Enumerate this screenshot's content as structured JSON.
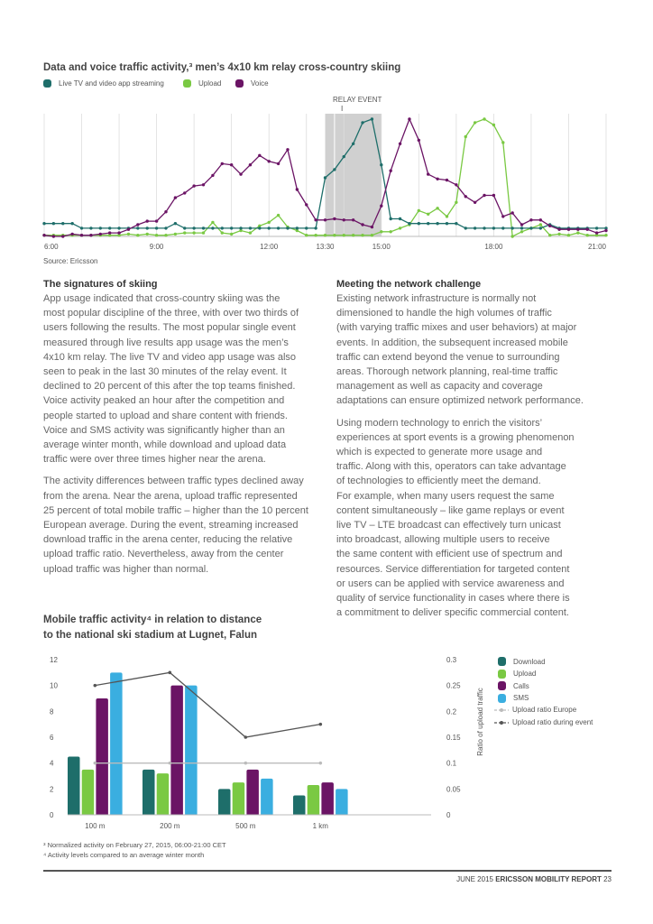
{
  "top_chart": {
    "title": "Data and voice traffic activity,³ men’s 4x10 km relay cross-country skiing",
    "legend": [
      {
        "label": "Live TV and video app streaming",
        "color": "#1e6e6a"
      },
      {
        "label": "Upload",
        "color": "#7ac943"
      },
      {
        "label": "Voice",
        "color": "#6b1465"
      }
    ],
    "annotation": "RELAY EVENT",
    "source": "Source: Ericsson",
    "chart_data": {
      "type": "line",
      "x_start": "6:00",
      "x_end": "21:00",
      "x_step_minutes": 15,
      "x_range_hours": [
        6,
        21
      ],
      "x_tick_labels": [
        {
          "h": 6,
          "label": "6:00"
        },
        {
          "h": 9,
          "label": "9:00"
        },
        {
          "h": 12,
          "label": "12:00"
        },
        {
          "h": 13.5,
          "label": "13:30"
        },
        {
          "h": 15,
          "label": "15:00"
        },
        {
          "h": 18,
          "label": "18:00"
        },
        {
          "h": 21,
          "label": "21:00"
        }
      ],
      "highlight_range_hours": [
        13.5,
        15
      ],
      "ylim": [
        0,
        100
      ],
      "series": [
        {
          "name": "Live TV and video app streaming",
          "color": "#1e6e6a",
          "values": [
            11,
            11,
            11,
            11,
            7,
            7,
            7,
            7,
            7,
            7,
            7,
            7,
            7,
            7,
            7,
            7,
            7,
            7,
            11,
            7,
            7,
            7,
            7,
            7,
            7,
            7,
            7,
            7,
            7,
            7,
            7,
            7,
            7,
            7,
            7,
            7,
            7,
            7,
            7,
            7,
            7,
            7,
            7,
            7,
            7,
            7,
            7,
            7,
            7,
            7,
            50,
            57,
            68,
            79,
            97,
            100,
            61,
            15,
            15,
            11,
            11,
            11,
            11,
            11,
            11,
            11,
            11,
            7,
            7,
            7,
            7,
            7,
            7,
            7,
            7,
            7,
            7,
            7,
            7,
            7,
            7,
            10,
            7,
            7,
            7,
            7,
            7,
            7,
            7,
            7,
            7,
            7,
            7,
            7,
            7,
            7,
            7,
            7,
            7,
            7,
            7,
            7,
            7,
            7,
            7,
            7,
            7,
            7,
            7,
            7,
            7,
            7,
            7,
            7,
            7,
            7
          ]
        },
        {
          "name": "Upload",
          "color": "#7ac943",
          "values": []
        },
        {
          "name": "Voice",
          "color": "#6b1465",
          "values": []
        }
      ]
    }
  },
  "left_column": {
    "heading": "The signatures of skiing",
    "paragraphs": [
      [
        "App usage indicated that cross-country skiing was the",
        "most popular discipline of the three, with over two thirds of",
        "users following the results. The most popular single event",
        "measured through live results app usage was the men’s",
        "4x10 km relay. The live TV and video app usage was also",
        "seen to peak in the last 30 minutes of the relay event. It",
        "declined to 20 percent of this after the top teams finished.",
        "Voice activity peaked an hour after the competition and",
        "people started to upload and share content with friends.",
        "Voice and SMS activity was significantly higher than an",
        "average winter month, while download and upload data",
        "traffic were over three times higher near the arena."
      ],
      [
        "The activity differences between traffic types declined away",
        "from the arena. Near the arena, upload traffic represented",
        "25 percent of total mobile traffic – higher than the 10 percent",
        "European average. During the event, streaming increased",
        "download traffic in the arena center, reducing the relative",
        "upload traffic ratio. Nevertheless, away from the center",
        "upload traffic was higher than normal."
      ]
    ]
  },
  "right_column": {
    "heading": "Meeting the network challenge",
    "paragraphs": [
      [
        "Existing network infrastructure is normally not",
        "dimensioned to handle the high volumes of traffic",
        "(with varying traffic mixes and user behaviors) at major",
        "events. In addition, the subsequent increased mobile",
        "traffic can extend beyond the venue to surrounding",
        "areas. Thorough network planning, real-time traffic",
        "management as well as capacity and coverage",
        "adaptations can ensure optimized network performance."
      ],
      [
        "Using modern technology to enrich the visitors’",
        "experiences at sport events is a growing phenomenon",
        "which is expected to generate more usage and",
        "traffic. Along with this, operators can take advantage",
        "of technologies to efficiently meet the demand.",
        "For example, when many users request the same",
        "content simultaneously – like game replays or event",
        "live TV – LTE broadcast can effectively turn unicast",
        "into broadcast, allowing multiple users to receive",
        "the same content with efficient use of spectrum and",
        "resources. Service differentiation for targeted content",
        "or users can be applied with service awareness and",
        "quality of service functionality in cases where there is",
        "a commitment to deliver specific commercial content."
      ]
    ]
  },
  "bottom_chart": {
    "title_lines": [
      "Mobile traffic activity⁴ in relation to distance",
      "to the national ski stadium at Lugnet, Falun"
    ],
    "chart_data": {
      "type": "bar",
      "categories": [
        "100 m",
        "200 m",
        "500 m",
        "1 km"
      ],
      "series": [
        {
          "name": "Download",
          "color": "#1e6e6a",
          "values": [
            4.5,
            3.5,
            2.0,
            1.5
          ]
        },
        {
          "name": "Upload",
          "color": "#7ac943",
          "values": [
            3.5,
            3.2,
            2.5,
            2.3
          ]
        },
        {
          "name": "Calls",
          "color": "#6b1465",
          "values": [
            9,
            10,
            3.5,
            2.5
          ]
        },
        {
          "name": "SMS",
          "color": "#3aaee0",
          "values": [
            11,
            10,
            2.8,
            2.0
          ]
        }
      ],
      "lines": [
        {
          "name": "Upload ratio Europe",
          "color": "#bbbbbb",
          "values": [
            0.1,
            0.1,
            0.1,
            0.1
          ]
        },
        {
          "name": "Upload ratio during event",
          "color": "#555555",
          "values": [
            0.25,
            0.275,
            0.15,
            0.175
          ]
        }
      ],
      "ylim": [
        0,
        12
      ],
      "y_ticks": [
        "0",
        "2",
        "4",
        "6",
        "8",
        "10",
        "12"
      ],
      "y2lim": [
        0,
        0.3
      ],
      "y2_ticks": [
        "0",
        "0.05",
        "0.1",
        "0.15",
        "0.2",
        "0.25",
        "0.3"
      ],
      "y2label": "Ratio of upload traffic"
    }
  },
  "footnotes": [
    "³ Normalized activity on February 27, 2015, 06:00-21:00 CET",
    "⁴ Activity levels compared to an average winter month"
  ],
  "footer": {
    "date": "JUNE 2015",
    "report": "ERICSSON MOBILITY REPORT",
    "page": "23"
  }
}
